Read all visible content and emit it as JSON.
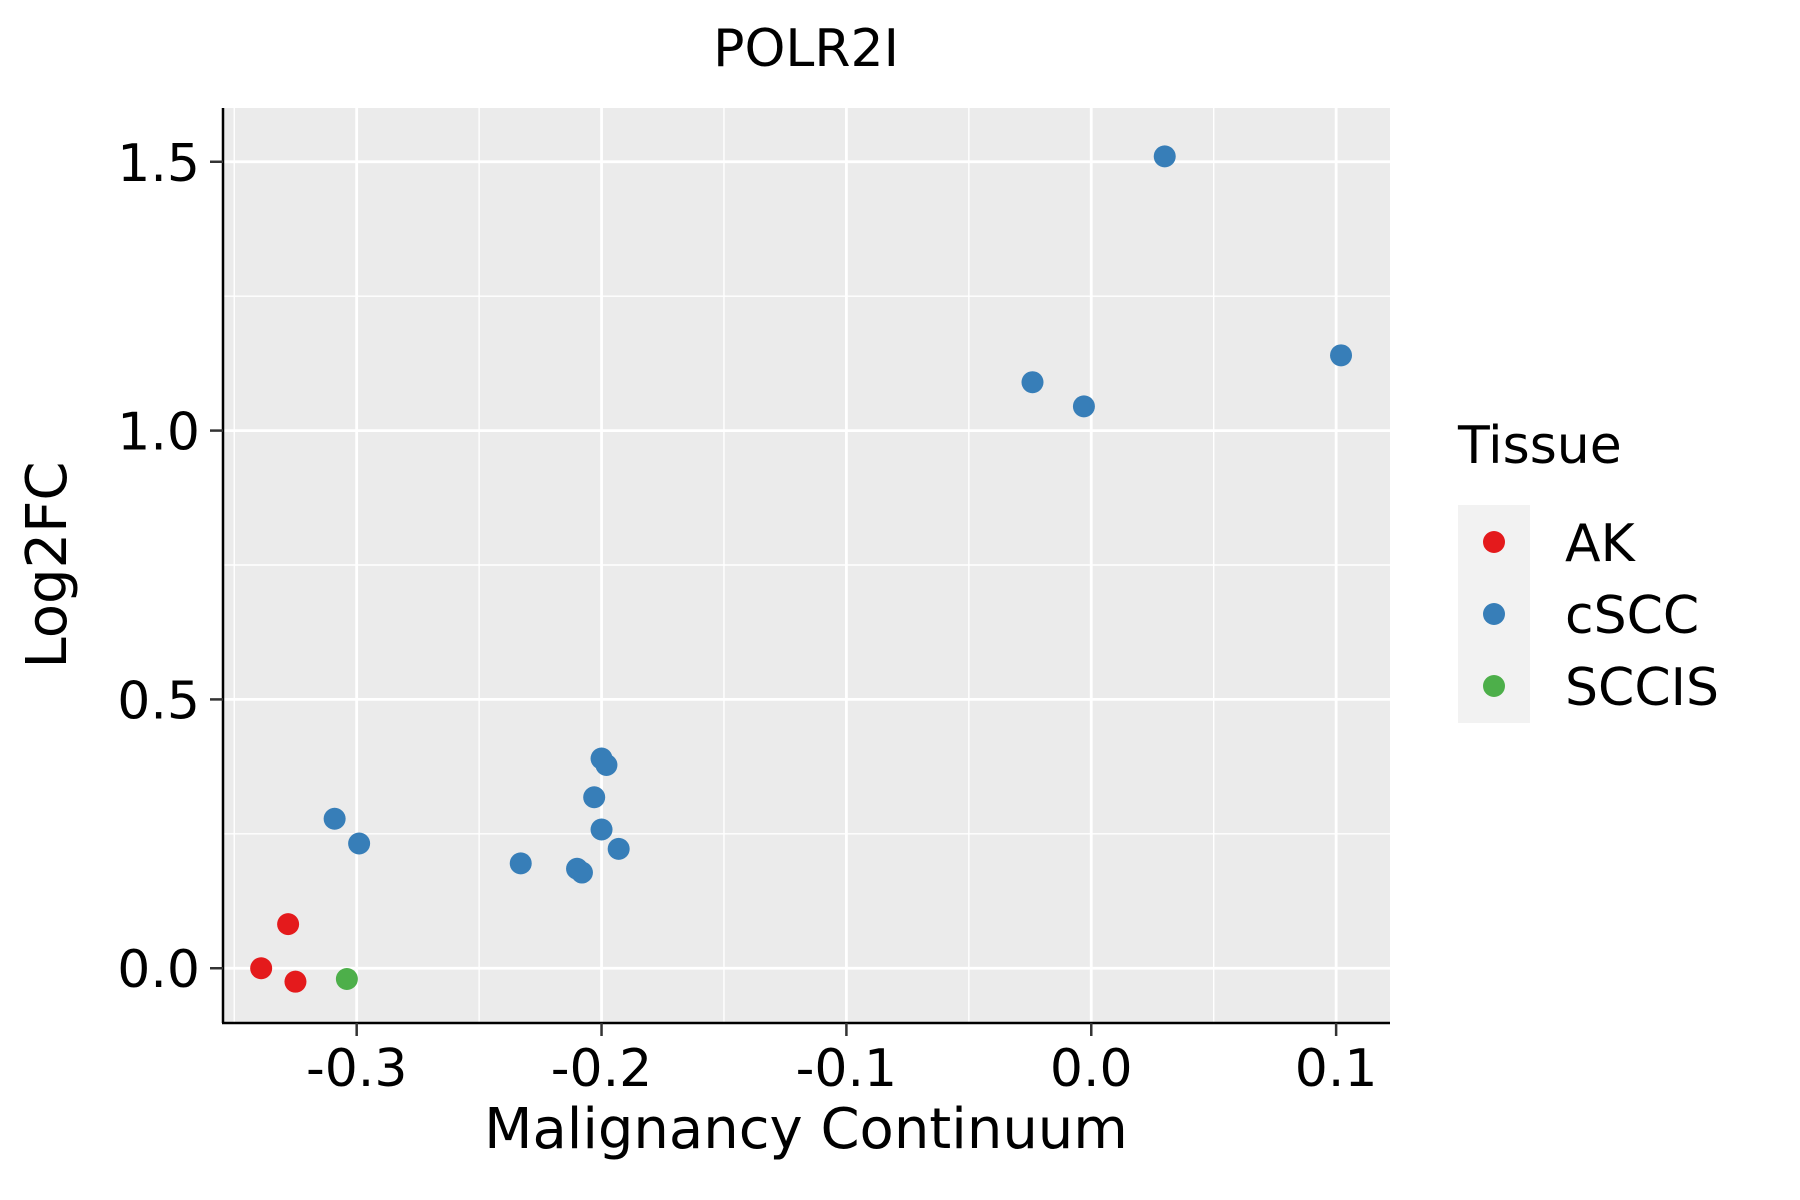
{
  "chart_data": {
    "type": "scatter",
    "title": "POLR2I",
    "xlabel": "Malignancy Continuum",
    "ylabel": "Log2FC",
    "xlim": [
      -0.355,
      0.122
    ],
    "ylim": [
      -0.1,
      1.6
    ],
    "xticks": [
      -0.3,
      -0.2,
      -0.1,
      0.0,
      0.1
    ],
    "xtick_labels": [
      "-0.3",
      "-0.2",
      "-0.1",
      "0.0",
      "0.1"
    ],
    "yticks": [
      0.0,
      0.5,
      1.0,
      1.5
    ],
    "ytick_labels": [
      "0.0",
      "0.5",
      "1.0",
      "1.5"
    ],
    "grid": true,
    "legend": {
      "title": "Tissue",
      "placement": "right",
      "entries": [
        {
          "name": "AK",
          "color": "#E41A1C"
        },
        {
          "name": "cSCC",
          "color": "#377EB8"
        },
        {
          "name": "SCCIS",
          "color": "#4DAF4A"
        }
      ]
    },
    "series": [
      {
        "name": "AK",
        "color": "#E41A1C",
        "points": [
          {
            "x": -0.339,
            "y": 0.0
          },
          {
            "x": -0.328,
            "y": 0.082
          },
          {
            "x": -0.325,
            "y": -0.025
          }
        ]
      },
      {
        "name": "cSCC",
        "color": "#377EB8",
        "points": [
          {
            "x": 0.03,
            "y": 1.51
          },
          {
            "x": 0.102,
            "y": 1.14
          },
          {
            "x": -0.024,
            "y": 1.09
          },
          {
            "x": -0.003,
            "y": 1.045
          },
          {
            "x": -0.2,
            "y": 0.39
          },
          {
            "x": -0.198,
            "y": 0.378
          },
          {
            "x": -0.203,
            "y": 0.318
          },
          {
            "x": -0.2,
            "y": 0.258
          },
          {
            "x": -0.193,
            "y": 0.222
          },
          {
            "x": -0.233,
            "y": 0.195
          },
          {
            "x": -0.21,
            "y": 0.185
          },
          {
            "x": -0.208,
            "y": 0.178
          },
          {
            "x": -0.309,
            "y": 0.278
          },
          {
            "x": -0.299,
            "y": 0.232
          }
        ]
      },
      {
        "name": "SCCIS",
        "color": "#4DAF4A",
        "points": [
          {
            "x": -0.304,
            "y": -0.02
          }
        ]
      }
    ]
  }
}
